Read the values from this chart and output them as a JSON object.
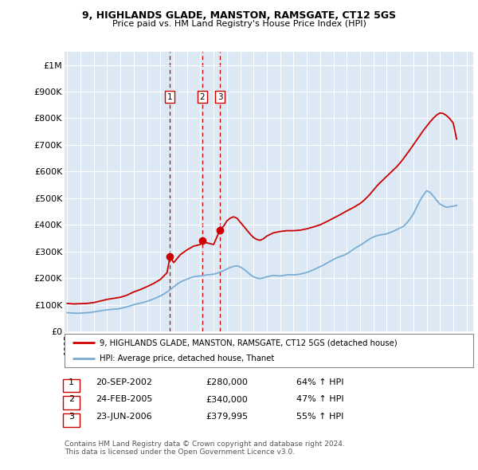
{
  "title": "9, HIGHLANDS GLADE, MANSTON, RAMSGATE, CT12 5GS",
  "subtitle": "Price paid vs. HM Land Registry's House Price Index (HPI)",
  "background_color": "#ffffff",
  "plot_bg_color": "#dce9f5",
  "ylim": [
    0,
    1050000
  ],
  "yticks": [
    0,
    100000,
    200000,
    300000,
    400000,
    500000,
    600000,
    700000,
    800000,
    900000,
    1000000
  ],
  "ytick_labels": [
    "£0",
    "£100K",
    "£200K",
    "£300K",
    "£400K",
    "£500K",
    "£600K",
    "£700K",
    "£800K",
    "£900K",
    "£1M"
  ],
  "xlim_start": 1994.8,
  "xlim_end": 2025.5,
  "sales": [
    {
      "num": 1,
      "year": 2002.72,
      "price": 280000,
      "date": "20-SEP-2002",
      "price_str": "£280,000",
      "hpi_pct": "64% ↑ HPI"
    },
    {
      "num": 2,
      "year": 2005.14,
      "price": 340000,
      "date": "24-FEB-2005",
      "price_str": "£340,000",
      "hpi_pct": "47% ↑ HPI"
    },
    {
      "num": 3,
      "year": 2006.47,
      "price": 379995,
      "date": "23-JUN-2006",
      "price_str": "£379,995",
      "hpi_pct": "55% ↑ HPI"
    }
  ],
  "red_line_color": "#cc0000",
  "blue_line_color": "#7aadd4",
  "legend_label_red": "9, HIGHLANDS GLADE, MANSTON, RAMSGATE, CT12 5GS (detached house)",
  "legend_label_blue": "HPI: Average price, detached house, Thanet",
  "footer_line1": "Contains HM Land Registry data © Crown copyright and database right 2024.",
  "footer_line2": "This data is licensed under the Open Government Licence v3.0.",
  "hpi_data_years": [
    1995.0,
    1995.25,
    1995.5,
    1995.75,
    1996.0,
    1996.25,
    1996.5,
    1996.75,
    1997.0,
    1997.25,
    1997.5,
    1997.75,
    1998.0,
    1998.25,
    1998.5,
    1998.75,
    1999.0,
    1999.25,
    1999.5,
    1999.75,
    2000.0,
    2000.25,
    2000.5,
    2000.75,
    2001.0,
    2001.25,
    2001.5,
    2001.75,
    2002.0,
    2002.25,
    2002.5,
    2002.75,
    2003.0,
    2003.25,
    2003.5,
    2003.75,
    2004.0,
    2004.25,
    2004.5,
    2004.75,
    2005.0,
    2005.25,
    2005.5,
    2005.75,
    2006.0,
    2006.25,
    2006.5,
    2006.75,
    2007.0,
    2007.25,
    2007.5,
    2007.75,
    2008.0,
    2008.25,
    2008.5,
    2008.75,
    2009.0,
    2009.25,
    2009.5,
    2009.75,
    2010.0,
    2010.25,
    2010.5,
    2010.75,
    2011.0,
    2011.25,
    2011.5,
    2011.75,
    2012.0,
    2012.25,
    2012.5,
    2012.75,
    2013.0,
    2013.25,
    2013.5,
    2013.75,
    2014.0,
    2014.25,
    2014.5,
    2014.75,
    2015.0,
    2015.25,
    2015.5,
    2015.75,
    2016.0,
    2016.25,
    2016.5,
    2016.75,
    2017.0,
    2017.25,
    2017.5,
    2017.75,
    2018.0,
    2018.25,
    2018.5,
    2018.75,
    2019.0,
    2019.25,
    2019.5,
    2019.75,
    2020.0,
    2020.25,
    2020.5,
    2020.75,
    2021.0,
    2021.25,
    2021.5,
    2021.75,
    2022.0,
    2022.25,
    2022.5,
    2022.75,
    2023.0,
    2023.25,
    2023.5,
    2023.75,
    2024.0,
    2024.25
  ],
  "hpi_values": [
    70000,
    69000,
    68500,
    68000,
    68500,
    69000,
    70000,
    71000,
    73000,
    75000,
    77000,
    79000,
    81000,
    82000,
    83000,
    84000,
    86000,
    89000,
    92000,
    96000,
    100000,
    103000,
    106000,
    109000,
    113000,
    117000,
    122000,
    127000,
    133000,
    140000,
    148000,
    157000,
    167000,
    177000,
    185000,
    191000,
    196000,
    201000,
    205000,
    207000,
    208000,
    210000,
    212000,
    213000,
    215000,
    218000,
    223000,
    228000,
    234000,
    240000,
    244000,
    246000,
    242000,
    234000,
    224000,
    213000,
    205000,
    200000,
    198000,
    201000,
    205000,
    208000,
    210000,
    209000,
    208000,
    210000,
    212000,
    213000,
    212000,
    213000,
    215000,
    218000,
    221000,
    226000,
    231000,
    237000,
    243000,
    249000,
    256000,
    263000,
    270000,
    276000,
    281000,
    285000,
    291000,
    299000,
    308000,
    316000,
    323000,
    331000,
    340000,
    348000,
    354000,
    359000,
    362000,
    364000,
    366000,
    371000,
    376000,
    382000,
    388000,
    394000,
    406000,
    422000,
    440000,
    466000,
    491000,
    511000,
    528000,
    522000,
    508000,
    492000,
    478000,
    471000,
    466000,
    468000,
    470000,
    473000
  ],
  "red_data_years": [
    1995.0,
    1995.5,
    1996.0,
    1996.5,
    1997.0,
    1997.5,
    1998.0,
    1998.5,
    1999.0,
    1999.5,
    2000.0,
    2000.5,
    2001.0,
    2001.5,
    2002.0,
    2002.5,
    2002.72,
    2003.0,
    2003.5,
    2004.0,
    2004.5,
    2005.0,
    2005.14,
    2005.5,
    2006.0,
    2006.47,
    2006.75,
    2007.0,
    2007.25,
    2007.5,
    2007.75,
    2008.0,
    2008.25,
    2008.5,
    2008.75,
    2009.0,
    2009.25,
    2009.5,
    2009.75,
    2010.0,
    2010.5,
    2011.0,
    2011.5,
    2012.0,
    2012.5,
    2013.0,
    2013.5,
    2014.0,
    2014.5,
    2015.0,
    2015.5,
    2016.0,
    2016.5,
    2017.0,
    2017.25,
    2017.5,
    2017.75,
    2018.0,
    2018.25,
    2018.5,
    2018.75,
    2019.0,
    2019.25,
    2019.5,
    2019.75,
    2020.0,
    2020.25,
    2020.5,
    2020.75,
    2021.0,
    2021.25,
    2021.5,
    2021.75,
    2022.0,
    2022.25,
    2022.5,
    2022.75,
    2023.0,
    2023.25,
    2023.5,
    2023.75,
    2024.0,
    2024.25
  ],
  "red_values": [
    105000,
    103000,
    104000,
    105000,
    108000,
    114000,
    120000,
    124000,
    128000,
    136000,
    148000,
    157000,
    168000,
    180000,
    195000,
    220000,
    280000,
    258000,
    288000,
    306000,
    320000,
    326000,
    340000,
    332000,
    326000,
    379995,
    395000,
    415000,
    425000,
    430000,
    425000,
    410000,
    395000,
    380000,
    365000,
    352000,
    345000,
    342000,
    348000,
    358000,
    370000,
    375000,
    378000,
    378000,
    380000,
    385000,
    392000,
    400000,
    412000,
    425000,
    438000,
    452000,
    465000,
    480000,
    490000,
    502000,
    515000,
    530000,
    545000,
    558000,
    570000,
    582000,
    594000,
    606000,
    618000,
    632000,
    648000,
    665000,
    682000,
    700000,
    718000,
    736000,
    754000,
    770000,
    786000,
    800000,
    812000,
    820000,
    818000,
    810000,
    798000,
    782000,
    722000
  ]
}
